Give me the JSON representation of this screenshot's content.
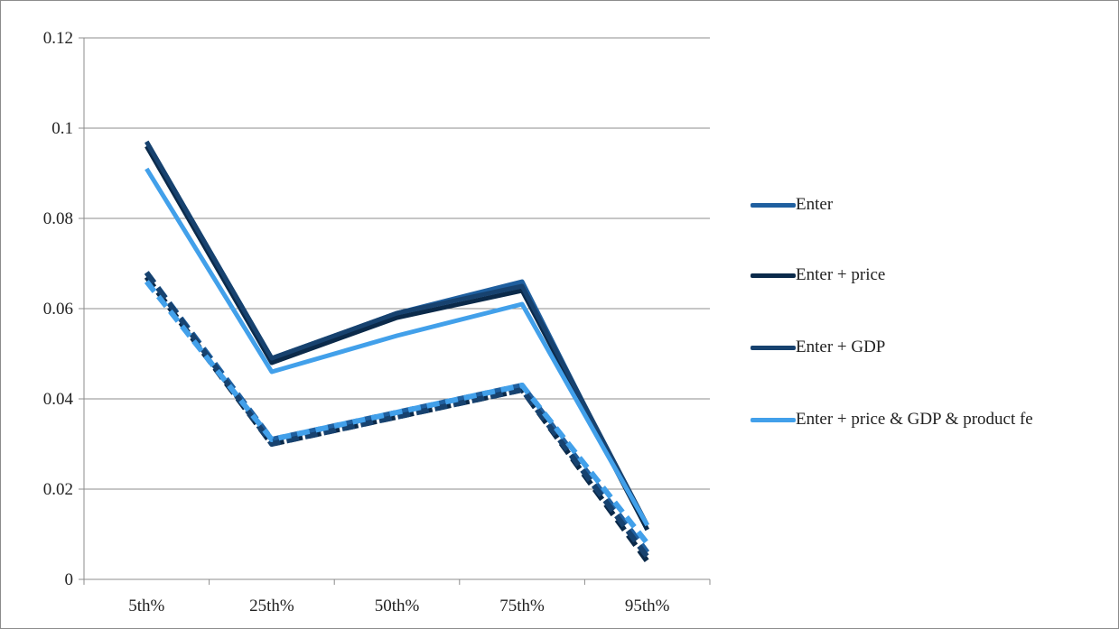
{
  "chart_data": {
    "type": "line",
    "categories": [
      "5th%",
      "25th%",
      "50th%",
      "75th%",
      "95th%"
    ],
    "ylim": [
      0,
      0.12
    ],
    "yticks": [
      "0",
      "0.02",
      "0.04",
      "0.06",
      "0.08",
      "0.1",
      "0.12"
    ],
    "grid": true,
    "legend_position": "right",
    "series": [
      {
        "name": "Enter",
        "color": "#1f5f9f",
        "values": [
          0.097,
          0.049,
          0.059,
          0.066,
          0.011
        ],
        "dashed_values": [
          0.068,
          0.031,
          0.037,
          0.043,
          0.006
        ]
      },
      {
        "name": "Enter + price",
        "color": "#0b2a4a",
        "values": [
          0.096,
          0.048,
          0.058,
          0.064,
          0.011
        ],
        "dashed_values": [
          0.067,
          0.03,
          0.036,
          0.042,
          0.004
        ]
      },
      {
        "name": "Enter + GDP",
        "color": "#17426f",
        "values": [
          0.097,
          0.049,
          0.059,
          0.065,
          0.012
        ],
        "dashed_values": [
          0.068,
          0.03,
          0.036,
          0.042,
          0.005
        ]
      },
      {
        "name": "Enter + price & GDP & product fe",
        "color": "#42a0ea",
        "values": [
          0.091,
          0.046,
          0.054,
          0.061,
          0.012
        ],
        "dashed_values": [
          0.066,
          0.031,
          0.037,
          0.043,
          0.008
        ]
      }
    ]
  }
}
